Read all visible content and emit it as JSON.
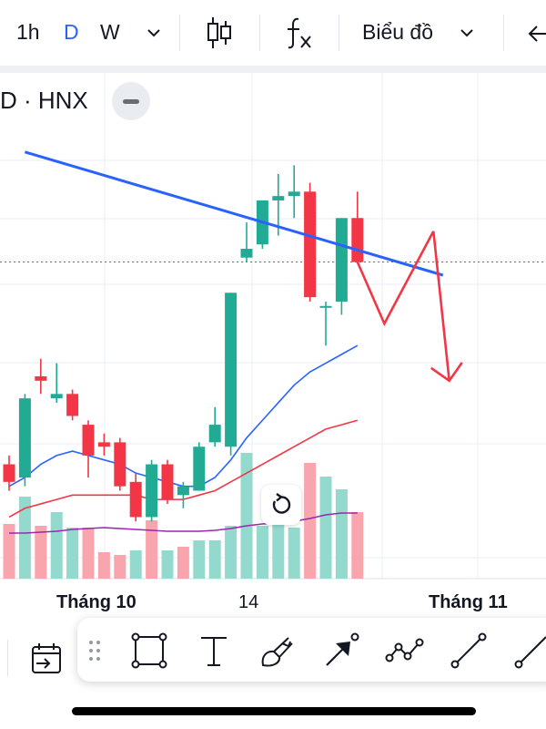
{
  "toolbar": {
    "interval_1h": "1h",
    "interval_d": "D",
    "interval_w": "W",
    "chart_type_icon": "candles-icon",
    "indicators_icon": "fx-icon",
    "chart_menu_label": "Biểu đồ"
  },
  "legend": {
    "symbol": "D · HNX"
  },
  "colors": {
    "up": "#22ab94",
    "down": "#f23645",
    "accent": "#2962ff",
    "trendline": "#2962ff",
    "ma_short": "#2962ff",
    "ma_long": "#f23645",
    "volume_ma": "#9c27b0"
  },
  "xaxis": {
    "labels": [
      "Tháng 10",
      "14",
      "Tháng 11"
    ]
  },
  "drawing_tools": [
    "rectangle-icon",
    "text-icon",
    "brush-icon",
    "arrow-icon",
    "path-icon",
    "trend-line-icon"
  ],
  "chart_data": {
    "type": "candlestick",
    "candles": [
      {
        "o": 32.6,
        "h": 32.8,
        "l": 32.0,
        "c": 32.2
      },
      {
        "o": 32.3,
        "h": 34.2,
        "l": 32.1,
        "c": 34.1
      },
      {
        "o": 34.6,
        "h": 35.0,
        "l": 34.2,
        "c": 34.5
      },
      {
        "o": 34.1,
        "h": 34.9,
        "l": 34.0,
        "c": 34.2
      },
      {
        "o": 34.2,
        "h": 34.3,
        "l": 33.6,
        "c": 33.7
      },
      {
        "o": 33.5,
        "h": 33.6,
        "l": 32.3,
        "c": 32.8
      },
      {
        "o": 33.1,
        "h": 33.3,
        "l": 32.8,
        "c": 33.0
      },
      {
        "o": 33.1,
        "h": 33.2,
        "l": 32.0,
        "c": 32.1
      },
      {
        "o": 32.2,
        "h": 32.4,
        "l": 31.3,
        "c": 31.4
      },
      {
        "o": 31.4,
        "h": 32.7,
        "l": 31.3,
        "c": 32.6
      },
      {
        "o": 32.6,
        "h": 32.7,
        "l": 31.7,
        "c": 31.8
      },
      {
        "o": 31.9,
        "h": 32.2,
        "l": 31.6,
        "c": 32.1
      },
      {
        "o": 32.0,
        "h": 33.1,
        "l": 32.0,
        "c": 33.0
      },
      {
        "o": 33.1,
        "h": 33.9,
        "l": 33.0,
        "c": 33.5
      },
      {
        "o": 33.0,
        "h": 36.5,
        "l": 32.8,
        "c": 36.5
      },
      {
        "o": 37.3,
        "h": 38.1,
        "l": 37.2,
        "c": 37.5
      },
      {
        "o": 37.6,
        "h": 38.6,
        "l": 37.5,
        "c": 38.6
      },
      {
        "o": 38.6,
        "h": 39.2,
        "l": 37.8,
        "c": 38.7
      },
      {
        "o": 38.7,
        "h": 39.4,
        "l": 38.2,
        "c": 38.8
      },
      {
        "o": 38.8,
        "h": 39.0,
        "l": 36.3,
        "c": 36.4
      },
      {
        "o": 36.2,
        "h": 36.3,
        "l": 35.3,
        "c": 36.2
      },
      {
        "o": 36.3,
        "h": 38.2,
        "l": 36.0,
        "c": 38.2
      },
      {
        "o": 38.2,
        "h": 38.8,
        "l": 37.2,
        "c": 37.2
      }
    ],
    "ma_short": [
      32.1,
      32.3,
      32.6,
      32.8,
      32.9,
      32.8,
      32.7,
      32.6,
      32.4,
      32.3,
      32.2,
      32.1,
      32.1,
      32.3,
      32.7,
      33.2,
      33.6,
      34.0,
      34.4,
      34.7,
      34.9,
      35.1,
      35.3
    ],
    "ma_long": [
      31.4,
      31.6,
      31.7,
      31.8,
      31.9,
      31.9,
      31.9,
      31.9,
      31.9,
      31.8,
      31.8,
      31.8,
      31.9,
      32.0,
      32.2,
      32.4,
      32.6,
      32.8,
      33.0,
      33.2,
      33.4,
      33.5,
      33.6
    ],
    "volume": [
      {
        "v": 6.0,
        "up": false
      },
      {
        "v": 9.0,
        "up": true
      },
      {
        "v": 5.8,
        "up": false
      },
      {
        "v": 7.3,
        "up": true
      },
      {
        "v": 5.6,
        "up": true
      },
      {
        "v": 5.6,
        "up": false
      },
      {
        "v": 2.9,
        "up": false
      },
      {
        "v": 2.6,
        "up": false
      },
      {
        "v": 3.1,
        "up": true
      },
      {
        "v": 6.4,
        "up": false
      },
      {
        "v": 3.1,
        "up": true
      },
      {
        "v": 3.5,
        "up": false
      },
      {
        "v": 4.2,
        "up": true
      },
      {
        "v": 4.2,
        "up": true
      },
      {
        "v": 5.8,
        "up": true
      },
      {
        "v": 13.8,
        "up": true
      },
      {
        "v": 5.8,
        "up": true
      },
      {
        "v": 6.4,
        "up": true
      },
      {
        "v": 5.6,
        "up": true
      },
      {
        "v": 12.7,
        "up": false
      },
      {
        "v": 11.2,
        "up": true
      },
      {
        "v": 9.8,
        "up": true
      },
      {
        "v": 7.3,
        "up": false
      }
    ],
    "volume_ma": [
      5.0,
      5.0,
      5.1,
      5.2,
      5.4,
      5.5,
      5.6,
      5.5,
      5.4,
      5.3,
      5.2,
      5.2,
      5.2,
      5.3,
      5.5,
      5.8,
      6.0,
      6.1,
      6.3,
      6.6,
      7.0,
      7.2,
      7.2
    ],
    "price_range": [
      30.0,
      41.5
    ],
    "drawings": {
      "trendline": [
        [
          1,
          39.7
        ],
        [
          27.4,
          36.9
        ]
      ],
      "projection": [
        [
          22,
          37.2
        ],
        [
          23.7,
          35.8
        ],
        [
          26.8,
          37.9
        ]
      ],
      "down_arrow": [
        [
          26.8,
          37.9
        ],
        [
          27.8,
          34.5
        ]
      ]
    },
    "last_price": 37.2
  }
}
